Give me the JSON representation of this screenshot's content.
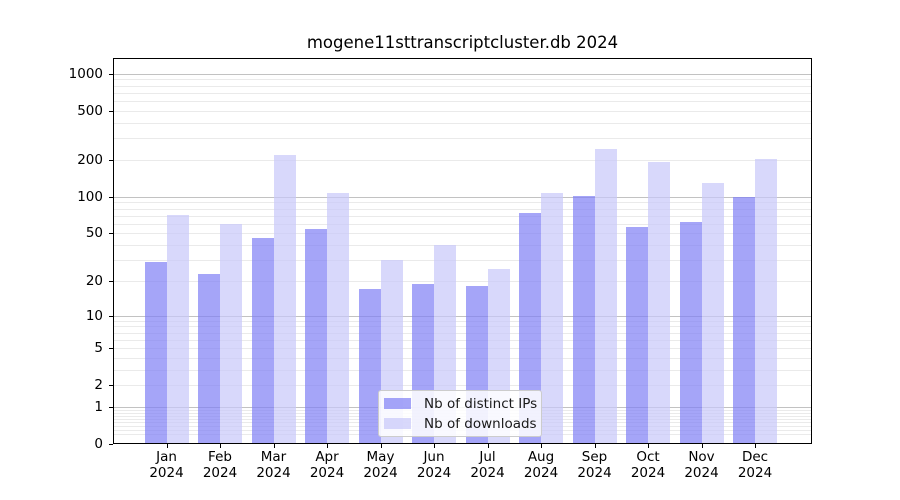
{
  "chart_data": {
    "type": "bar",
    "title": "mogene11sttranscriptcluster.db 2024",
    "x_months": [
      "Jan",
      "Feb",
      "Mar",
      "Apr",
      "May",
      "Jun",
      "Jul",
      "Aug",
      "Sep",
      "Oct",
      "Nov",
      "Dec"
    ],
    "x_year": "2024",
    "series": [
      {
        "name": "Nb of distinct IPs",
        "color": "rgba(127,127,245,0.7)",
        "values": [
          29,
          23,
          46,
          54,
          17,
          19,
          18,
          73,
          101,
          56,
          62,
          100
        ]
      },
      {
        "name": "Nb of downloads",
        "color": "rgba(199,199,249,0.7)",
        "values": [
          71,
          60,
          220,
          107,
          30,
          40,
          25,
          107,
          245,
          193,
          130,
          202
        ]
      }
    ],
    "yscale": "log1p",
    "ylim": [
      0,
      1343
    ],
    "yticks": [
      0,
      1,
      2,
      5,
      10,
      20,
      50,
      100,
      200,
      500,
      1000
    ],
    "grid": {
      "major_lines": [
        1,
        10,
        100,
        1000
      ],
      "minor_bases": [
        0.1,
        1,
        10,
        100
      ],
      "minor_multipliers": [
        2,
        3,
        4,
        5,
        6,
        7,
        8,
        9
      ]
    },
    "legend_position": "lower-center",
    "colors": {
      "major_grid": "#c2c2c2",
      "minor_grid": "#eaeaea",
      "axis": "#000000",
      "background": "#ffffff"
    }
  }
}
